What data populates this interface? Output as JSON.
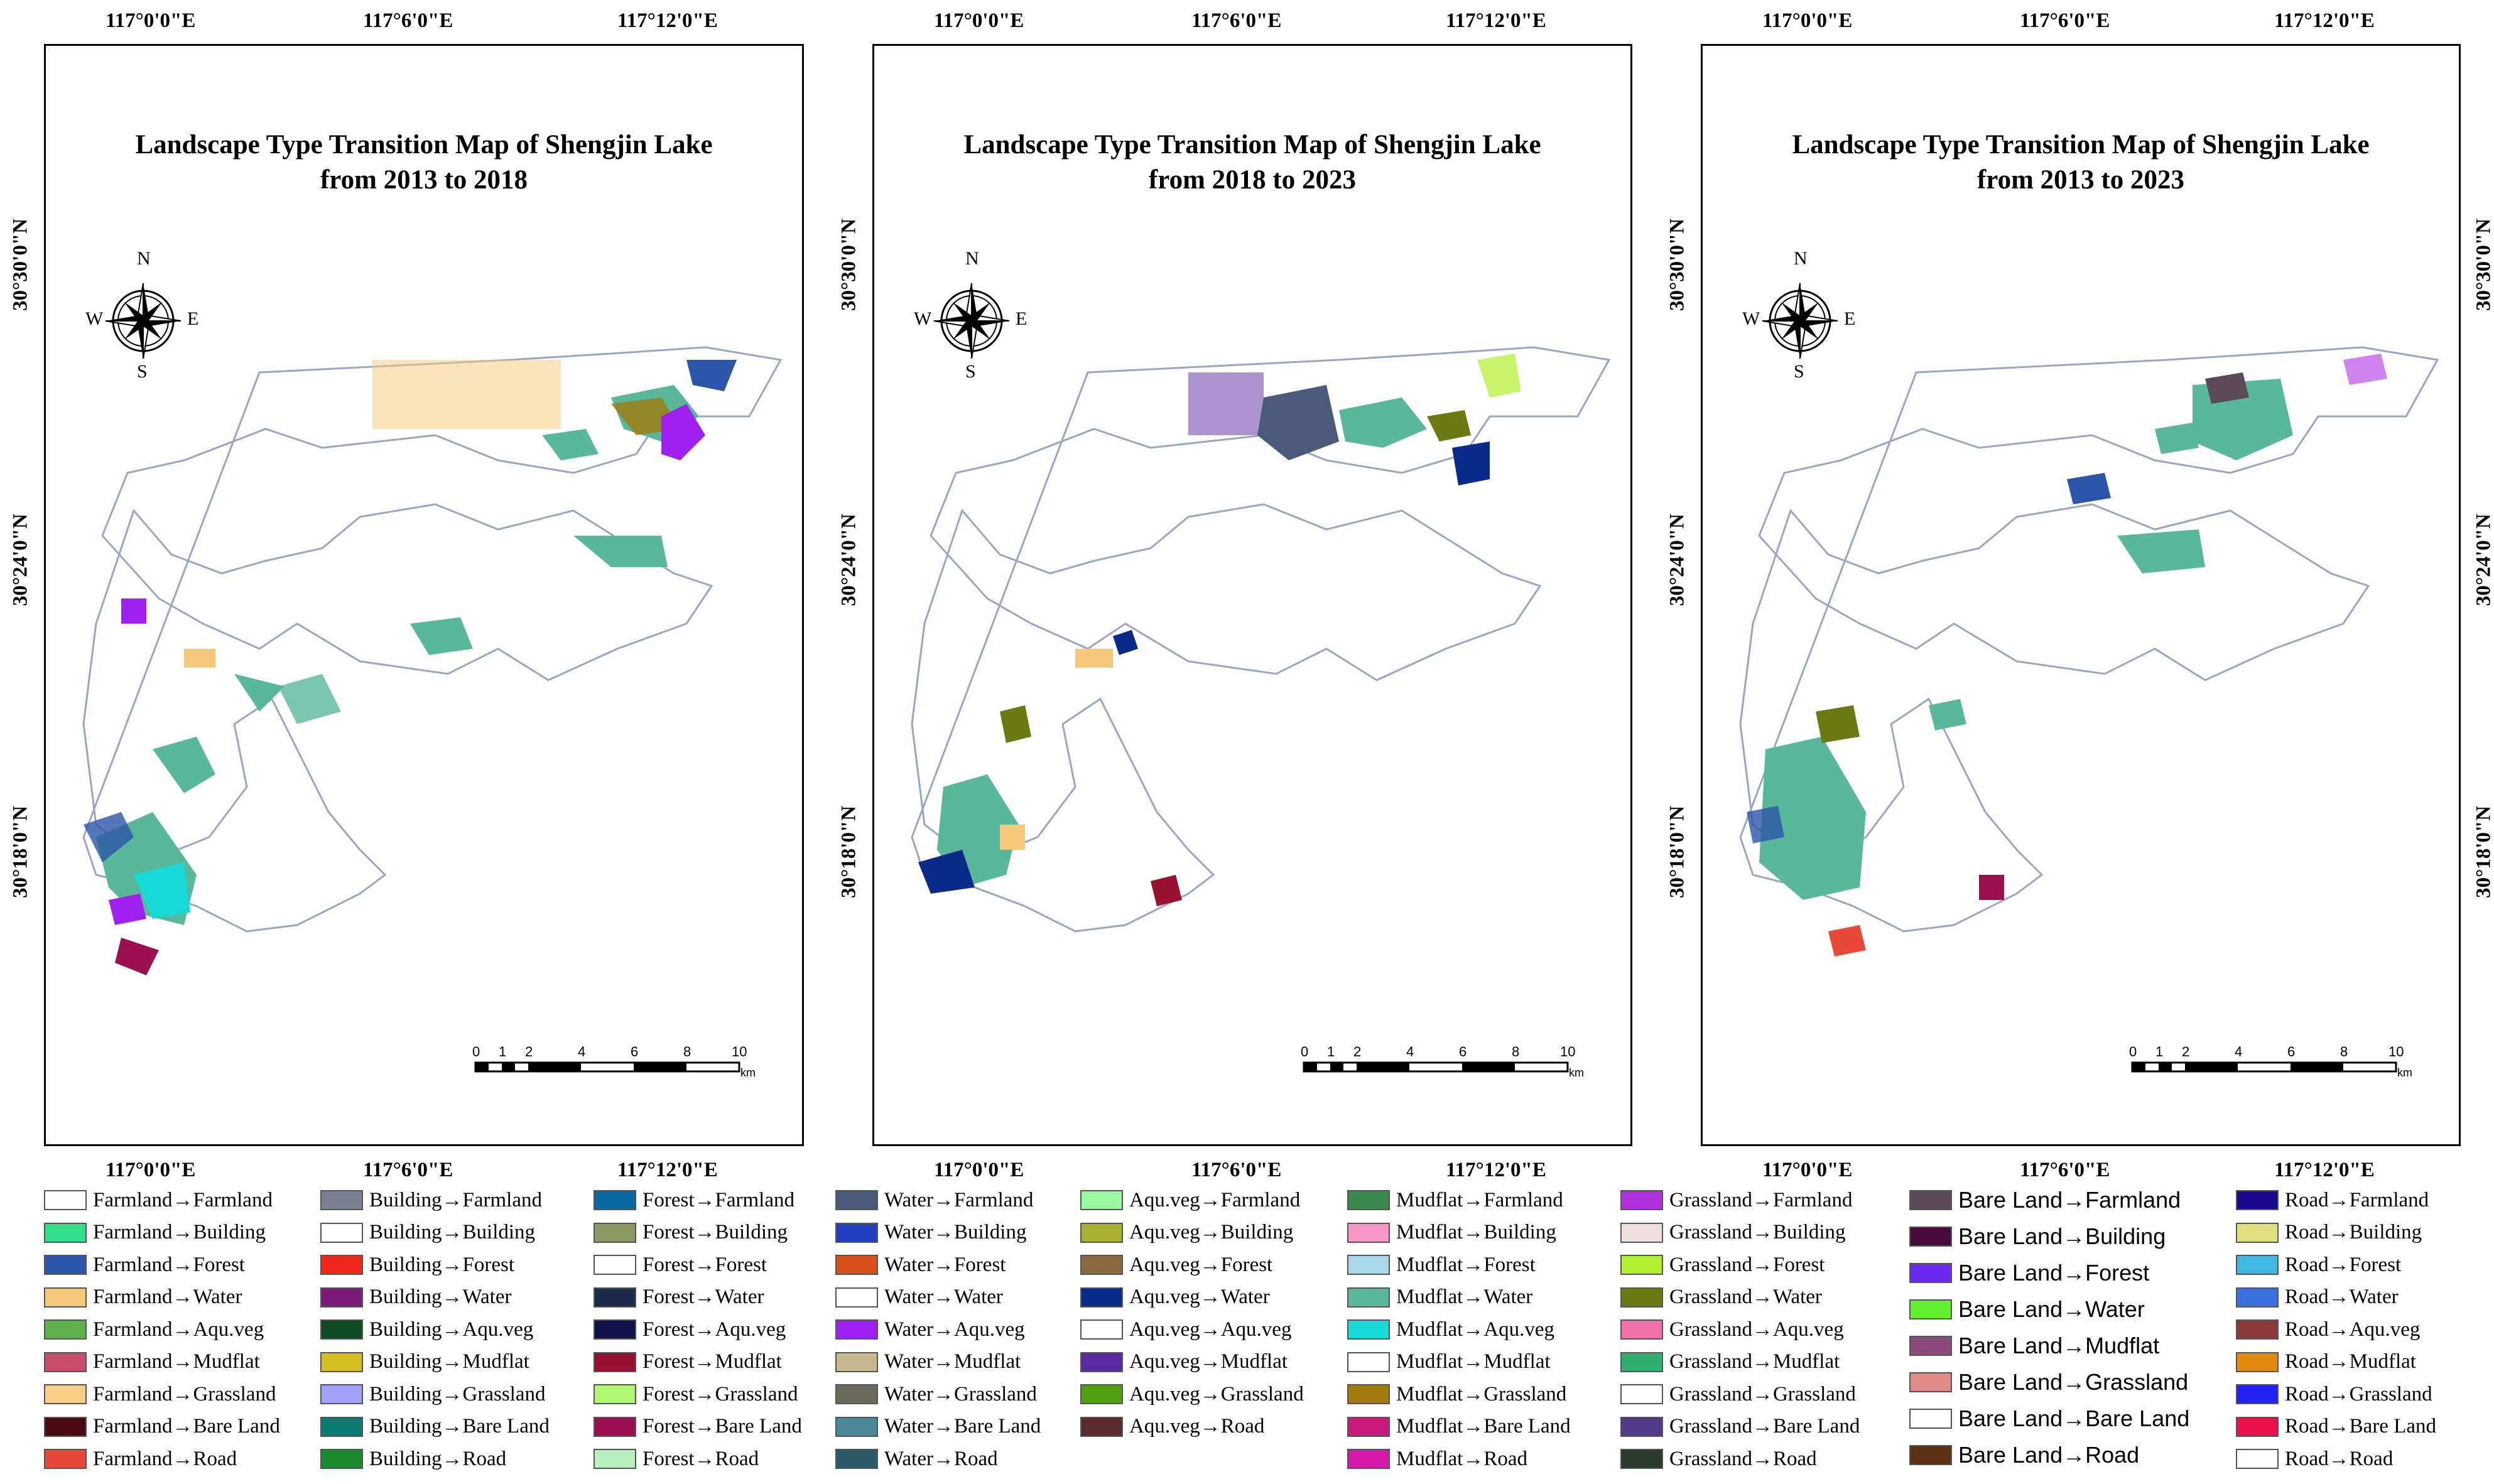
{
  "panels": [
    {
      "title_line1": "Landscape Type Transition Map of Shengjin Lake",
      "title_line2": "from 2013 to 2018"
    },
    {
      "title_line1": "Landscape Type Transition Map of Shengjin Lake",
      "title_line2": "from 2018 to 2023"
    },
    {
      "title_line1": "Landscape Type Transition Map of Shengjin Lake",
      "title_line2": "from 2013 to 2023"
    }
  ],
  "coords": {
    "lon": [
      "117°0'0\"E",
      "117°6'0\"E",
      "117°12'0\"E"
    ],
    "lat": [
      "30°30'0\"N",
      "30°24'0\"N",
      "30°18'0\"N"
    ]
  },
  "compass": {
    "n": "N",
    "s": "S",
    "e": "E",
    "w": "W"
  },
  "scale": {
    "ticks": [
      "0",
      "1",
      "2",
      "4",
      "6",
      "8",
      "10"
    ],
    "unit": "km"
  },
  "legend": [
    [
      {
        "label": "Farmland→Farmland",
        "color": "#ffffff"
      },
      {
        "label": "Farmland→Building",
        "color": "#33e08a"
      },
      {
        "label": "Farmland→Forest",
        "color": "#2a55a8"
      },
      {
        "label": "Farmland→Water",
        "color": "#f6c97a"
      },
      {
        "label": "Farmland→Aqu.veg",
        "color": "#5fb04a"
      },
      {
        "label": "Farmland→Mudflat",
        "color": "#c8506a"
      },
      {
        "label": "Farmland→Grassland",
        "color": "#f7cf86"
      },
      {
        "label": "Farmland→Bare Land",
        "color": "#4a0a12"
      },
      {
        "label": "Farmland→Road",
        "color": "#e84a3a"
      }
    ],
    [
      {
        "label": "Building→Farmland",
        "color": "#7a8090"
      },
      {
        "label": "Building→Building",
        "color": "#ffffff"
      },
      {
        "label": "Building→Forest",
        "color": "#f02a1a"
      },
      {
        "label": "Building→Water",
        "color": "#7a1a7a"
      },
      {
        "label": "Building→Aqu.veg",
        "color": "#0d4a20"
      },
      {
        "label": "Building→Mudflat",
        "color": "#d4c020"
      },
      {
        "label": "Building→Grassland",
        "color": "#a0a0f8"
      },
      {
        "label": "Building→Bare Land",
        "color": "#0a7a70"
      },
      {
        "label": "Building→Road",
        "color": "#1a8a2a"
      }
    ],
    [
      {
        "label": "Forest→Farmland",
        "color": "#0a6aa0"
      },
      {
        "label": "Forest→Building",
        "color": "#8a9a60"
      },
      {
        "label": "Forest→Forest",
        "color": "#ffffff"
      },
      {
        "label": "Forest→Water",
        "color": "#1a2a4a"
      },
      {
        "label": "Forest→Aqu.veg",
        "color": "#10104a"
      },
      {
        "label": "Forest→Mudflat",
        "color": "#9a1030"
      },
      {
        "label": "Forest→Grassland",
        "color": "#b0f870"
      },
      {
        "label": "Forest→Bare Land",
        "color": "#9a1050"
      },
      {
        "label": "Forest→Road",
        "color": "#b8f0c0"
      }
    ],
    [
      {
        "label": "Water→Farmland",
        "color": "#4a5a7a"
      },
      {
        "label": "Water→Building",
        "color": "#2040c0"
      },
      {
        "label": "Water→Forest",
        "color": "#d8501a"
      },
      {
        "label": "Water→Water",
        "color": "#ffffff"
      },
      {
        "label": "Water→Aqu.veg",
        "color": "#a020f0"
      },
      {
        "label": "Water→Mudflat",
        "color": "#c8b890"
      },
      {
        "label": "Water→Grassland",
        "color": "#6a6a5a"
      },
      {
        "label": "Water→Bare Land",
        "color": "#4a8a98"
      },
      {
        "label": "Water→Road",
        "color": "#285a68"
      }
    ],
    [
      {
        "label": "Aqu.veg→Farmland",
        "color": "#9af8a0"
      },
      {
        "label": "Aqu.veg→Building",
        "color": "#a8b030"
      },
      {
        "label": "Aqu.veg→Forest",
        "color": "#8a6a40"
      },
      {
        "label": "Aqu.veg→Water",
        "color": "#0a2a8a"
      },
      {
        "label": "Aqu.veg→Aqu.veg",
        "color": "#ffffff"
      },
      {
        "label": "Aqu.veg→Mudflat",
        "color": "#5a2aa0"
      },
      {
        "label": "Aqu.veg→Grassland",
        "color": "#50a010"
      },
      {
        "label": "Aqu.veg→Road",
        "color": "#5a2a2a"
      }
    ],
    [
      {
        "label": "Mudflat→Farmland",
        "color": "#3a8a50"
      },
      {
        "label": "Mudflat→Building",
        "color": "#f898c8"
      },
      {
        "label": "Mudflat→Forest",
        "color": "#a8d8e8"
      },
      {
        "label": "Mudflat→Water",
        "color": "#5ab89a"
      },
      {
        "label": "Mudflat→Aqu.veg",
        "color": "#18d8d8"
      },
      {
        "label": "Mudflat→Mudflat",
        "color": "#ffffff"
      },
      {
        "label": "Mudflat→Grassland",
        "color": "#a07a0a"
      },
      {
        "label": "Mudflat→Bare Land",
        "color": "#c81a7a"
      },
      {
        "label": "Mudflat→Road",
        "color": "#d818a8"
      }
    ],
    [
      {
        "label": "Grassland→Farmland",
        "color": "#b030e0"
      },
      {
        "label": "Grassland→Building",
        "color": "#f0e0e0"
      },
      {
        "label": "Grassland→Forest",
        "color": "#b0f030"
      },
      {
        "label": "Grassland→Water",
        "color": "#6a7a10"
      },
      {
        "label": "Grassland→Aqu.veg",
        "color": "#f070a8"
      },
      {
        "label": "Grassland→Mudflat",
        "color": "#30b070"
      },
      {
        "label": "Grassland→Grassland",
        "color": "#ffffff"
      },
      {
        "label": "Grassland→Bare Land",
        "color": "#503a8a"
      },
      {
        "label": "Grassland→Road",
        "color": "#2a3a2a"
      }
    ],
    [
      {
        "label": "Bare Land→Farmland",
        "color": "#5a4a5a"
      },
      {
        "label": "Bare Land→Building",
        "color": "#4a0a3a"
      },
      {
        "label": "Bare Land→Forest",
        "color": "#6a2af0"
      },
      {
        "label": "Bare Land→Water",
        "color": "#60f030"
      },
      {
        "label": "Bare Land→Mudflat",
        "color": "#8a4a7a"
      },
      {
        "label": "Bare Land→Grassland",
        "color": "#e08a8a"
      },
      {
        "label": "Bare Land→Bare Land",
        "color": "#ffffff"
      },
      {
        "label": "Bare Land→Road",
        "color": "#5a3010"
      }
    ],
    [
      {
        "label": "Road→Farmland",
        "color": "#1a0a8a"
      },
      {
        "label": "Road→Building",
        "color": "#e0e080"
      },
      {
        "label": "Road→Forest",
        "color": "#40b8e0"
      },
      {
        "label": "Road→Water",
        "color": "#3a70e0"
      },
      {
        "label": "Road→Aqu.veg",
        "color": "#8a3a3a"
      },
      {
        "label": "Road→Mudflat",
        "color": "#e08a10"
      },
      {
        "label": "Road→Grassland",
        "color": "#2020f0"
      },
      {
        "label": "Road→Bare Land",
        "color": "#e8104a"
      },
      {
        "label": "Road→Road",
        "color": "#ffffff"
      }
    ]
  ]
}
